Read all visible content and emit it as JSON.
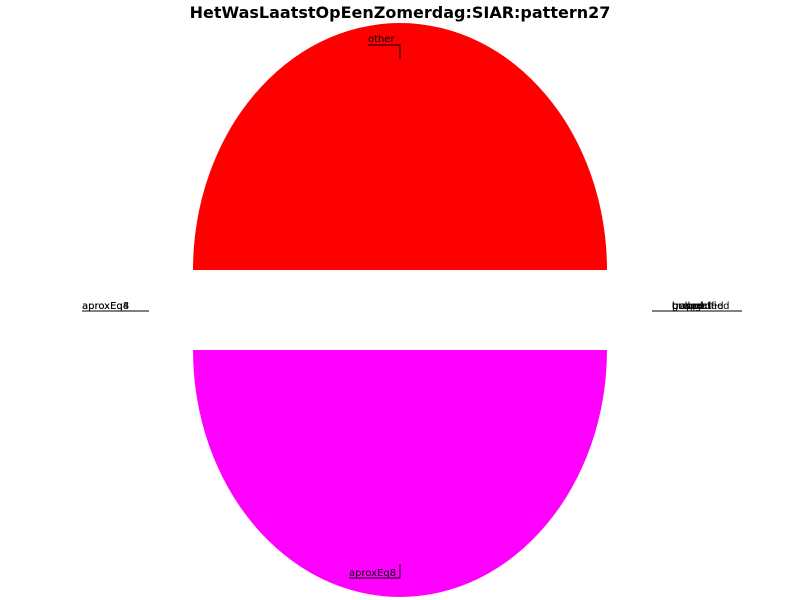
{
  "chart_data": {
    "type": "pie",
    "title": "HetWasLaatstOpEenZomerdag:SIAR:pattern27",
    "slices": [
      {
        "label": "other",
        "value": 50,
        "color": "#ff0000"
      },
      {
        "label": "aproxEq8",
        "value": 50,
        "color": "#ff00ff"
      }
    ],
    "label_clusters": {
      "left": [
        "aproxEq4",
        "aproxEq8"
      ],
      "right": [
        "brought",
        "unspecified",
        "generated",
        "trapped",
        "pulled"
      ]
    }
  }
}
